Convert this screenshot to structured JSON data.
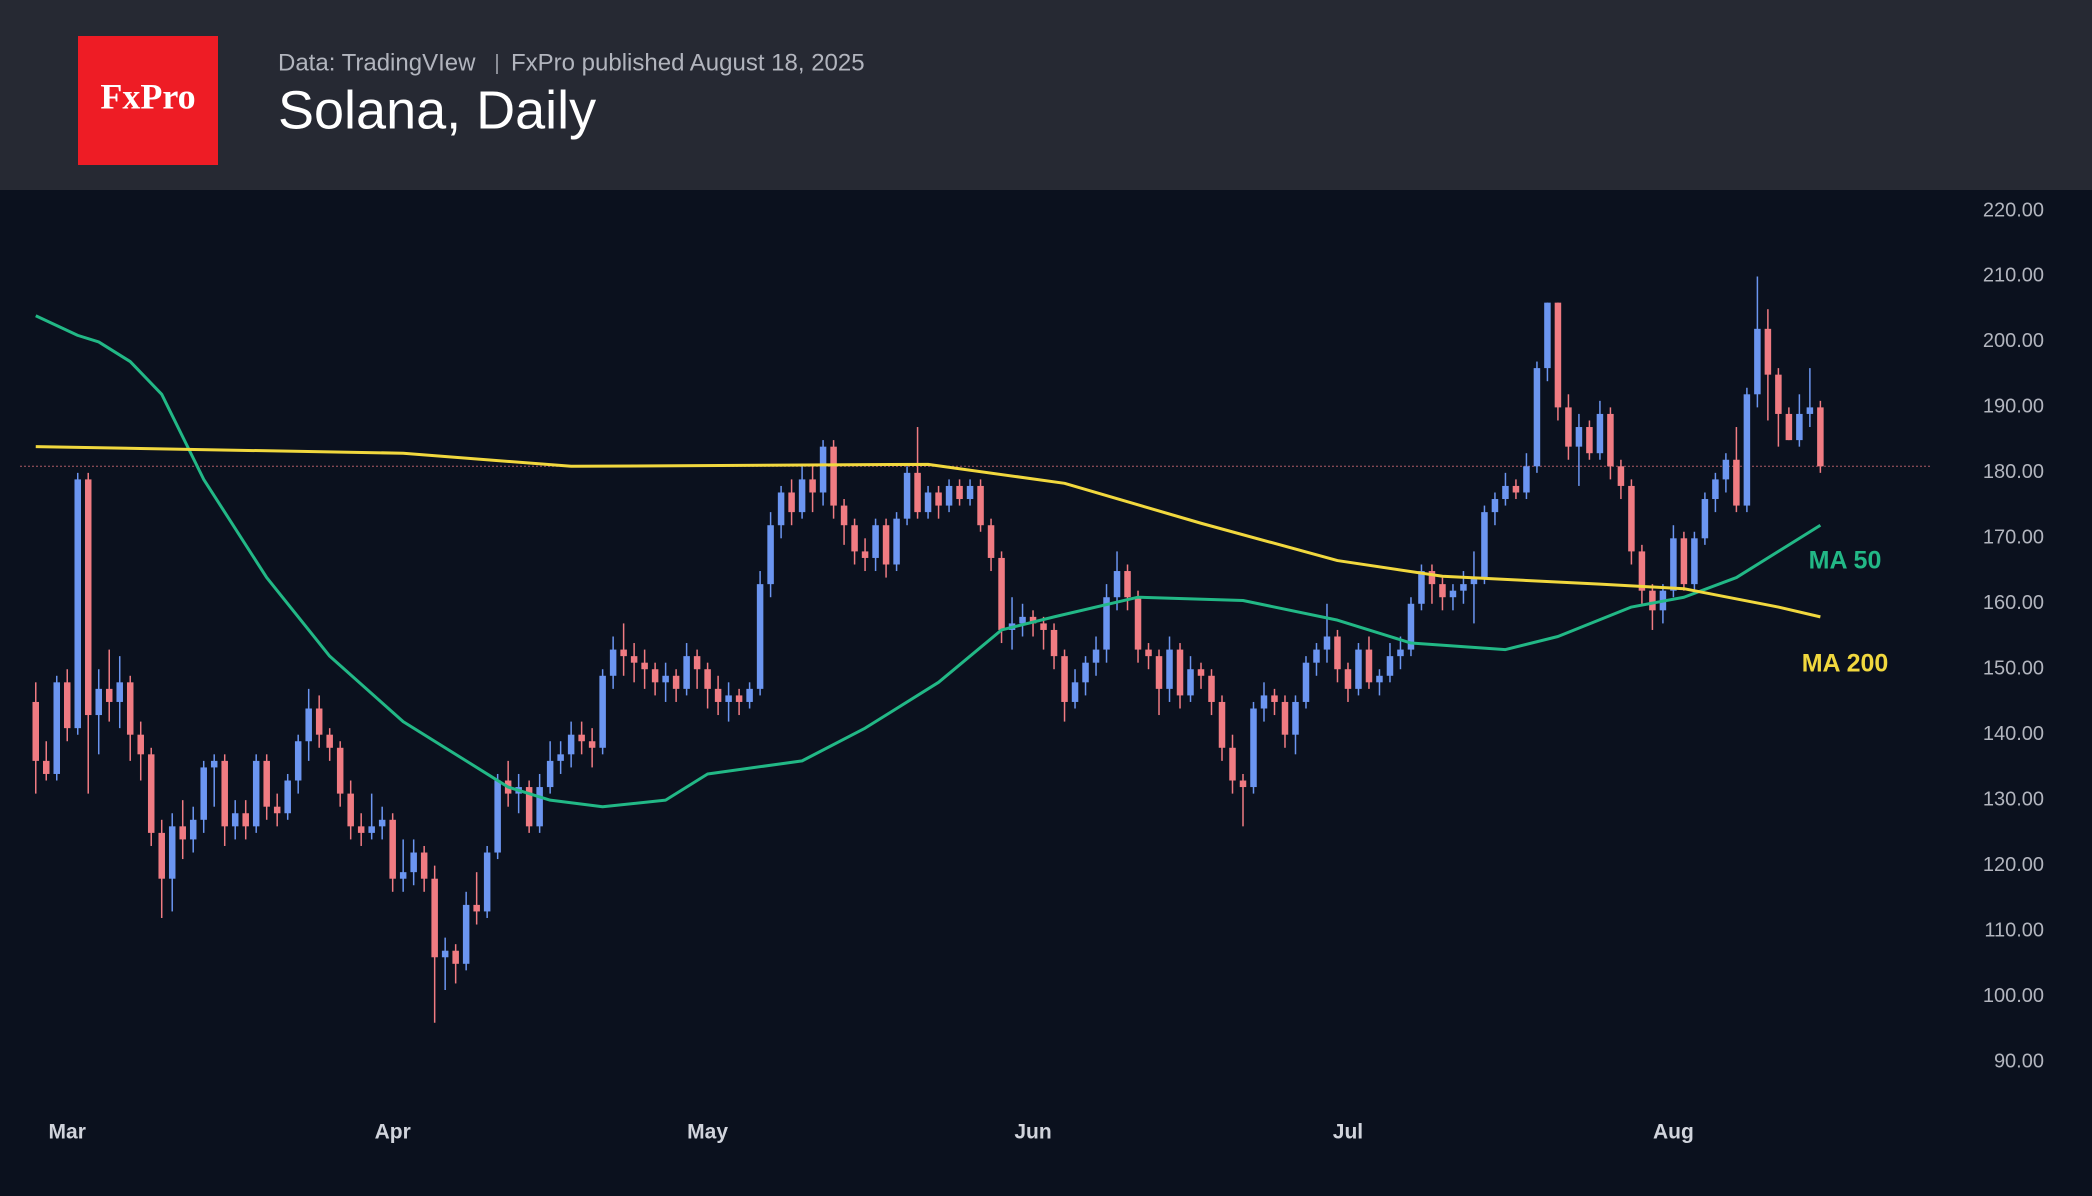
{
  "chart_data": {
    "type": "candlestick",
    "logo": "FxPro",
    "source": "Data: TradingVIew",
    "published": "FxPro published August 18, 2025",
    "title": "Solana, Daily",
    "up_color": "#6b95f0",
    "down_color": "#f07b82",
    "xlim": [
      -1.5,
      183.3
    ],
    "ylim": [
      90,
      220
    ],
    "xticks": [
      {
        "value": 3,
        "label": "Mar"
      },
      {
        "value": 34,
        "label": "Apr"
      },
      {
        "value": 64,
        "label": "May"
      },
      {
        "value": 95,
        "label": "Jun"
      },
      {
        "value": 125,
        "label": "Jul"
      },
      {
        "value": 156,
        "label": "Aug"
      }
    ],
    "yticks": [
      {
        "value": 220,
        "label": "220.00"
      },
      {
        "value": 210,
        "label": "210.00"
      },
      {
        "value": 200,
        "label": "200.00"
      },
      {
        "value": 190,
        "label": "190.00"
      },
      {
        "value": 180,
        "label": "180.00"
      },
      {
        "value": 170,
        "label": "170.00"
      },
      {
        "value": 160,
        "label": "160.00"
      },
      {
        "value": 150,
        "label": "150.00"
      },
      {
        "value": 140,
        "label": "140.00"
      },
      {
        "value": 130,
        "label": "130.00"
      },
      {
        "value": 120,
        "label": "120.00"
      },
      {
        "value": 110,
        "label": "110.00"
      },
      {
        "value": 100,
        "label": "100.00"
      },
      {
        "value": 90,
        "label": "90.00"
      }
    ],
    "x": [
      0,
      1,
      2,
      3,
      4,
      5,
      6,
      7,
      8,
      9,
      10,
      11,
      12,
      13,
      14,
      15,
      16,
      17,
      18,
      19,
      20,
      21,
      22,
      23,
      24,
      25,
      26,
      27,
      28,
      29,
      30,
      31,
      32,
      33,
      34,
      35,
      36,
      37,
      38,
      39,
      40,
      41,
      42,
      43,
      44,
      45,
      46,
      47,
      48,
      49,
      50,
      51,
      52,
      53,
      54,
      55,
      56,
      57,
      58,
      59,
      60,
      61,
      62,
      63,
      64,
      65,
      66,
      67,
      68,
      69,
      70,
      71,
      72,
      73,
      74,
      75,
      76,
      77,
      78,
      79,
      80,
      81,
      82,
      83,
      84,
      85,
      86,
      87,
      88,
      89,
      90,
      91,
      92,
      93,
      94,
      95,
      96,
      97,
      98,
      99,
      100,
      101,
      102,
      103,
      104,
      105,
      106,
      107,
      108,
      109,
      110,
      111,
      112,
      113,
      114,
      115,
      116,
      117,
      118,
      119,
      120,
      121,
      122,
      123,
      124,
      125,
      126,
      127,
      128,
      129,
      130,
      131,
      132,
      133,
      134,
      135,
      136,
      137,
      138,
      139,
      140,
      141,
      142,
      143,
      144,
      145,
      146,
      147,
      148,
      149,
      150,
      151,
      152,
      153,
      154,
      155,
      156,
      157,
      158,
      159,
      160,
      161,
      162,
      163,
      164,
      165,
      166,
      167,
      168,
      169,
      170
    ],
    "ohlc": [
      [
        145,
        148,
        131,
        136
      ],
      [
        136,
        139,
        133,
        134
      ],
      [
        134,
        149,
        133,
        148
      ],
      [
        148,
        150,
        139,
        141
      ],
      [
        141,
        180,
        140,
        179
      ],
      [
        179,
        180,
        131,
        143
      ],
      [
        143,
        150,
        137,
        147
      ],
      [
        147,
        153,
        142,
        145
      ],
      [
        145,
        152,
        141,
        148
      ],
      [
        148,
        149,
        136,
        140
      ],
      [
        140,
        142,
        133,
        137
      ],
      [
        137,
        138,
        123,
        125
      ],
      [
        125,
        127,
        112,
        118
      ],
      [
        118,
        128,
        113,
        126
      ],
      [
        126,
        130,
        121,
        124
      ],
      [
        124,
        129,
        122,
        127
      ],
      [
        127,
        136,
        125,
        135
      ],
      [
        135,
        137,
        129,
        136
      ],
      [
        136,
        137,
        123,
        126
      ],
      [
        126,
        130,
        124,
        128
      ],
      [
        128,
        130,
        124,
        126
      ],
      [
        126,
        137,
        125,
        136
      ],
      [
        136,
        137,
        127,
        129
      ],
      [
        129,
        131,
        126,
        128
      ],
      [
        128,
        134,
        127,
        133
      ],
      [
        133,
        140,
        131,
        139
      ],
      [
        139,
        147,
        136,
        144
      ],
      [
        144,
        146,
        138,
        140
      ],
      [
        140,
        141,
        136,
        138
      ],
      [
        138,
        139,
        129,
        131
      ],
      [
        131,
        133,
        124,
        126
      ],
      [
        126,
        128,
        123,
        125
      ],
      [
        125,
        131,
        124,
        126
      ],
      [
        126,
        129,
        124,
        127
      ],
      [
        127,
        128,
        116,
        118
      ],
      [
        118,
        124,
        116,
        119
      ],
      [
        119,
        124,
        117,
        122
      ],
      [
        122,
        123,
        116,
        118
      ],
      [
        118,
        120,
        96,
        106
      ],
      [
        106,
        109,
        101,
        107
      ],
      [
        107,
        108,
        102,
        105
      ],
      [
        105,
        116,
        104,
        114
      ],
      [
        114,
        119,
        111,
        113
      ],
      [
        113,
        123,
        112,
        122
      ],
      [
        122,
        134,
        121,
        133
      ],
      [
        133,
        136,
        129,
        131
      ],
      [
        131,
        134,
        128,
        132
      ],
      [
        132,
        133,
        125,
        126
      ],
      [
        126,
        134,
        125,
        132
      ],
      [
        132,
        139,
        131,
        136
      ],
      [
        136,
        139,
        134,
        137
      ],
      [
        137,
        142,
        135,
        140
      ],
      [
        140,
        142,
        137,
        139
      ],
      [
        139,
        141,
        135,
        138
      ],
      [
        138,
        150,
        137,
        149
      ],
      [
        149,
        155,
        147,
        153
      ],
      [
        153,
        157,
        149,
        152
      ],
      [
        152,
        154,
        148,
        151
      ],
      [
        151,
        153,
        147,
        150
      ],
      [
        150,
        151,
        146,
        148
      ],
      [
        148,
        151,
        145,
        149
      ],
      [
        149,
        150,
        145,
        147
      ],
      [
        147,
        154,
        146,
        152
      ],
      [
        152,
        153,
        147,
        150
      ],
      [
        150,
        151,
        144,
        147
      ],
      [
        147,
        149,
        143,
        145
      ],
      [
        145,
        148,
        142,
        146
      ],
      [
        146,
        147,
        143,
        145
      ],
      [
        145,
        148,
        144,
        147
      ],
      [
        147,
        165,
        146,
        163
      ],
      [
        163,
        174,
        161,
        172
      ],
      [
        172,
        178,
        170,
        177
      ],
      [
        177,
        179,
        172,
        174
      ],
      [
        174,
        181,
        173,
        179
      ],
      [
        179,
        181,
        174,
        177
      ],
      [
        177,
        185,
        175,
        184
      ],
      [
        184,
        185,
        173,
        175
      ],
      [
        175,
        176,
        169,
        172
      ],
      [
        172,
        173,
        166,
        168
      ],
      [
        168,
        170,
        165,
        167
      ],
      [
        167,
        173,
        165,
        172
      ],
      [
        172,
        173,
        164,
        166
      ],
      [
        166,
        174,
        165,
        173
      ],
      [
        173,
        181,
        172,
        180
      ],
      [
        180,
        187,
        173,
        174
      ],
      [
        174,
        178,
        173,
        177
      ],
      [
        177,
        178,
        173,
        175
      ],
      [
        175,
        179,
        174,
        178
      ],
      [
        178,
        179,
        175,
        176
      ],
      [
        176,
        179,
        175,
        178
      ],
      [
        178,
        179,
        171,
        172
      ],
      [
        172,
        173,
        165,
        167
      ],
      [
        167,
        168,
        154,
        156
      ],
      [
        156,
        161,
        153,
        157
      ],
      [
        157,
        160,
        155,
        158
      ],
      [
        158,
        159,
        155,
        157
      ],
      [
        157,
        158,
        153,
        156
      ],
      [
        156,
        157,
        150,
        152
      ],
      [
        152,
        153,
        142,
        145
      ],
      [
        145,
        150,
        144,
        148
      ],
      [
        148,
        152,
        146,
        151
      ],
      [
        151,
        155,
        149,
        153
      ],
      [
        153,
        163,
        151,
        161
      ],
      [
        161,
        168,
        159,
        165
      ],
      [
        165,
        166,
        159,
        161
      ],
      [
        161,
        162,
        151,
        153
      ],
      [
        153,
        154,
        150,
        152
      ],
      [
        152,
        153,
        143,
        147
      ],
      [
        147,
        155,
        145,
        153
      ],
      [
        153,
        154,
        144,
        146
      ],
      [
        146,
        152,
        145,
        150
      ],
      [
        150,
        151,
        147,
        149
      ],
      [
        149,
        150,
        143,
        145
      ],
      [
        145,
        146,
        136,
        138
      ],
      [
        138,
        140,
        131,
        133
      ],
      [
        133,
        134,
        126,
        132
      ],
      [
        132,
        145,
        131,
        144
      ],
      [
        144,
        148,
        142,
        146
      ],
      [
        146,
        147,
        143,
        145
      ],
      [
        145,
        146,
        138,
        140
      ],
      [
        140,
        146,
        137,
        145
      ],
      [
        145,
        152,
        144,
        151
      ],
      [
        151,
        154,
        149,
        153
      ],
      [
        153,
        160,
        151,
        155
      ],
      [
        155,
        156,
        148,
        150
      ],
      [
        150,
        151,
        145,
        147
      ],
      [
        147,
        154,
        146,
        153
      ],
      [
        153,
        155,
        147,
        148
      ],
      [
        148,
        150,
        146,
        149
      ],
      [
        149,
        154,
        148,
        152
      ],
      [
        152,
        155,
        150,
        153
      ],
      [
        153,
        161,
        152,
        160
      ],
      [
        160,
        166,
        159,
        165
      ],
      [
        165,
        166,
        160,
        163
      ],
      [
        163,
        164,
        159,
        161
      ],
      [
        161,
        163,
        159,
        162
      ],
      [
        162,
        165,
        160,
        163
      ],
      [
        163,
        168,
        157,
        164
      ],
      [
        164,
        175,
        163,
        174
      ],
      [
        174,
        177,
        172,
        176
      ],
      [
        176,
        180,
        175,
        178
      ],
      [
        178,
        179,
        176,
        177
      ],
      [
        177,
        183,
        176,
        181
      ],
      [
        181,
        197,
        180,
        196
      ],
      [
        196,
        206,
        194,
        206
      ],
      [
        206,
        206,
        188,
        190
      ],
      [
        190,
        192,
        182,
        184
      ],
      [
        184,
        189,
        178,
        187
      ],
      [
        187,
        188,
        182,
        183
      ],
      [
        183,
        191,
        182,
        189
      ],
      [
        189,
        190,
        179,
        181
      ],
      [
        181,
        182,
        176,
        178
      ],
      [
        178,
        179,
        166,
        168
      ],
      [
        168,
        169,
        160,
        162
      ],
      [
        162,
        163,
        156,
        159
      ],
      [
        159,
        163,
        157,
        162
      ],
      [
        162,
        172,
        161,
        170
      ],
      [
        170,
        171,
        162,
        163
      ],
      [
        163,
        171,
        162,
        170
      ],
      [
        170,
        177,
        169,
        176
      ],
      [
        176,
        180,
        174,
        179
      ],
      [
        179,
        183,
        177,
        182
      ],
      [
        182,
        187,
        174,
        175
      ],
      [
        175,
        193,
        174,
        192
      ],
      [
        192,
        210,
        190,
        202
      ],
      [
        202,
        205,
        188,
        195
      ],
      [
        195,
        196,
        184,
        189
      ],
      [
        189,
        190,
        185,
        185
      ],
      [
        185,
        192,
        184,
        189
      ],
      [
        189,
        196,
        187,
        190
      ],
      [
        190,
        191,
        180,
        181
      ]
    ],
    "series": [
      {
        "name": "MA 50",
        "color": "#22b886",
        "x": [
          0,
          4,
          6,
          9,
          12,
          16,
          22,
          28,
          35,
          41,
          45,
          49,
          54,
          60,
          64,
          73,
          79,
          86,
          92,
          97,
          105,
          115,
          124,
          131,
          140,
          145,
          152,
          157,
          162,
          167,
          170
        ],
        "values": [
          204,
          201,
          200,
          197,
          192,
          179,
          164,
          152,
          142,
          136,
          132,
          130,
          129,
          130,
          134,
          136,
          141,
          148,
          156,
          158,
          161,
          160.5,
          157.5,
          154,
          153,
          155,
          159.5,
          161,
          164,
          169,
          172
        ]
      },
      {
        "name": "MA 200",
        "color": "#f1d83e",
        "x": [
          0,
          35,
          51,
          85,
          98,
          111,
          124,
          134,
          149,
          157,
          166,
          170
        ],
        "values": [
          184,
          183,
          181,
          181.3,
          178.4,
          172.3,
          166.6,
          164.2,
          163,
          162.3,
          159.5,
          158
        ]
      }
    ]
  }
}
